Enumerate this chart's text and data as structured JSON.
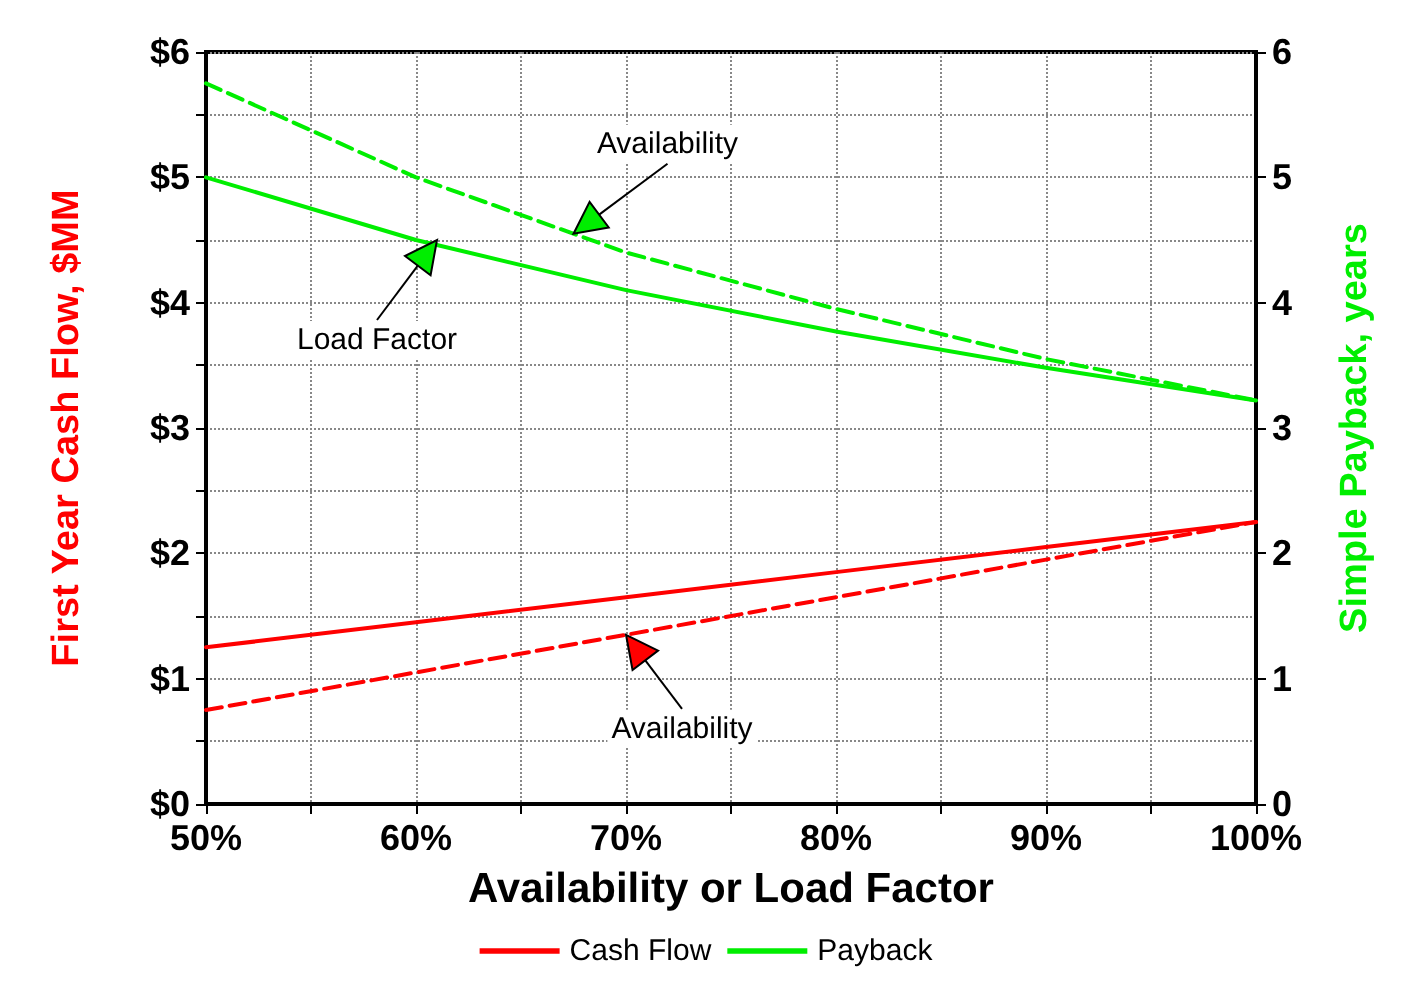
{
  "chart_data": {
    "type": "line",
    "xlabel": "Availability or Load Factor",
    "ylabel": "First Year Cash Flow, $MM",
    "y2label": "Simple Payback, years",
    "x": [
      50,
      60,
      70,
      80,
      90,
      100
    ],
    "series": [
      {
        "name": "Cash Flow",
        "color": "#ff0000",
        "values": [
          1.25,
          1.45,
          1.65,
          1.85,
          2.05,
          2.25
        ]
      },
      {
        "color": "#ff0000",
        "line_style": "dashed",
        "values": [
          0.75,
          1.05,
          1.35,
          1.65,
          1.95,
          2.25
        ]
      },
      {
        "name": "Payback",
        "color": "#00ee00",
        "axis": "y2",
        "values": [
          5.0,
          4.5,
          4.1,
          3.77,
          3.48,
          3.22
        ]
      },
      {
        "color": "#00ee00",
        "axis": "y2",
        "line_style": "dashed",
        "values": [
          5.75,
          5.0,
          4.4,
          3.95,
          3.55,
          3.22
        ]
      }
    ],
    "xlim": [
      50,
      100
    ],
    "xticks": [
      {
        "value": 50,
        "label": "50%"
      },
      {
        "value": 55,
        "label": null
      },
      {
        "value": 60,
        "label": "60%"
      },
      {
        "value": 65,
        "label": null
      },
      {
        "value": 70,
        "label": "70%"
      },
      {
        "value": 75,
        "label": null
      },
      {
        "value": 80,
        "label": "80%"
      },
      {
        "value": 85,
        "label": null
      },
      {
        "value": 90,
        "label": "90%"
      },
      {
        "value": 95,
        "label": null
      },
      {
        "value": 100,
        "label": "100%"
      }
    ],
    "ylim": [
      0,
      6
    ],
    "yticks": [
      {
        "value": 0,
        "label": "$0"
      },
      {
        "value": 0.5,
        "label": null
      },
      {
        "value": 1,
        "label": "$1"
      },
      {
        "value": 1.5,
        "label": null
      },
      {
        "value": 2,
        "label": "$2"
      },
      {
        "value": 2.5,
        "label": null
      },
      {
        "value": 3,
        "label": "$3"
      },
      {
        "value": 3.5,
        "label": null
      },
      {
        "value": 4,
        "label": "$4"
      },
      {
        "value": 4.5,
        "label": null
      },
      {
        "value": 5,
        "label": "$5"
      },
      {
        "value": 5.5,
        "label": null
      },
      {
        "value": 6,
        "label": "$6"
      }
    ],
    "y2lim": [
      0,
      6
    ],
    "y2ticks": [
      0,
      1,
      2,
      3,
      4,
      5,
      6
    ],
    "grid": true,
    "legend": "bottom",
    "line_style": "solid",
    "marker": "none",
    "annotations": [
      {
        "text": "Availability",
        "x": 67.5,
        "y": 4.55
      },
      {
        "text": "Load Factor",
        "x": 61,
        "y": 4.5
      },
      {
        "text": "Availability",
        "x": 70,
        "y": 1.35
      }
    ]
  }
}
